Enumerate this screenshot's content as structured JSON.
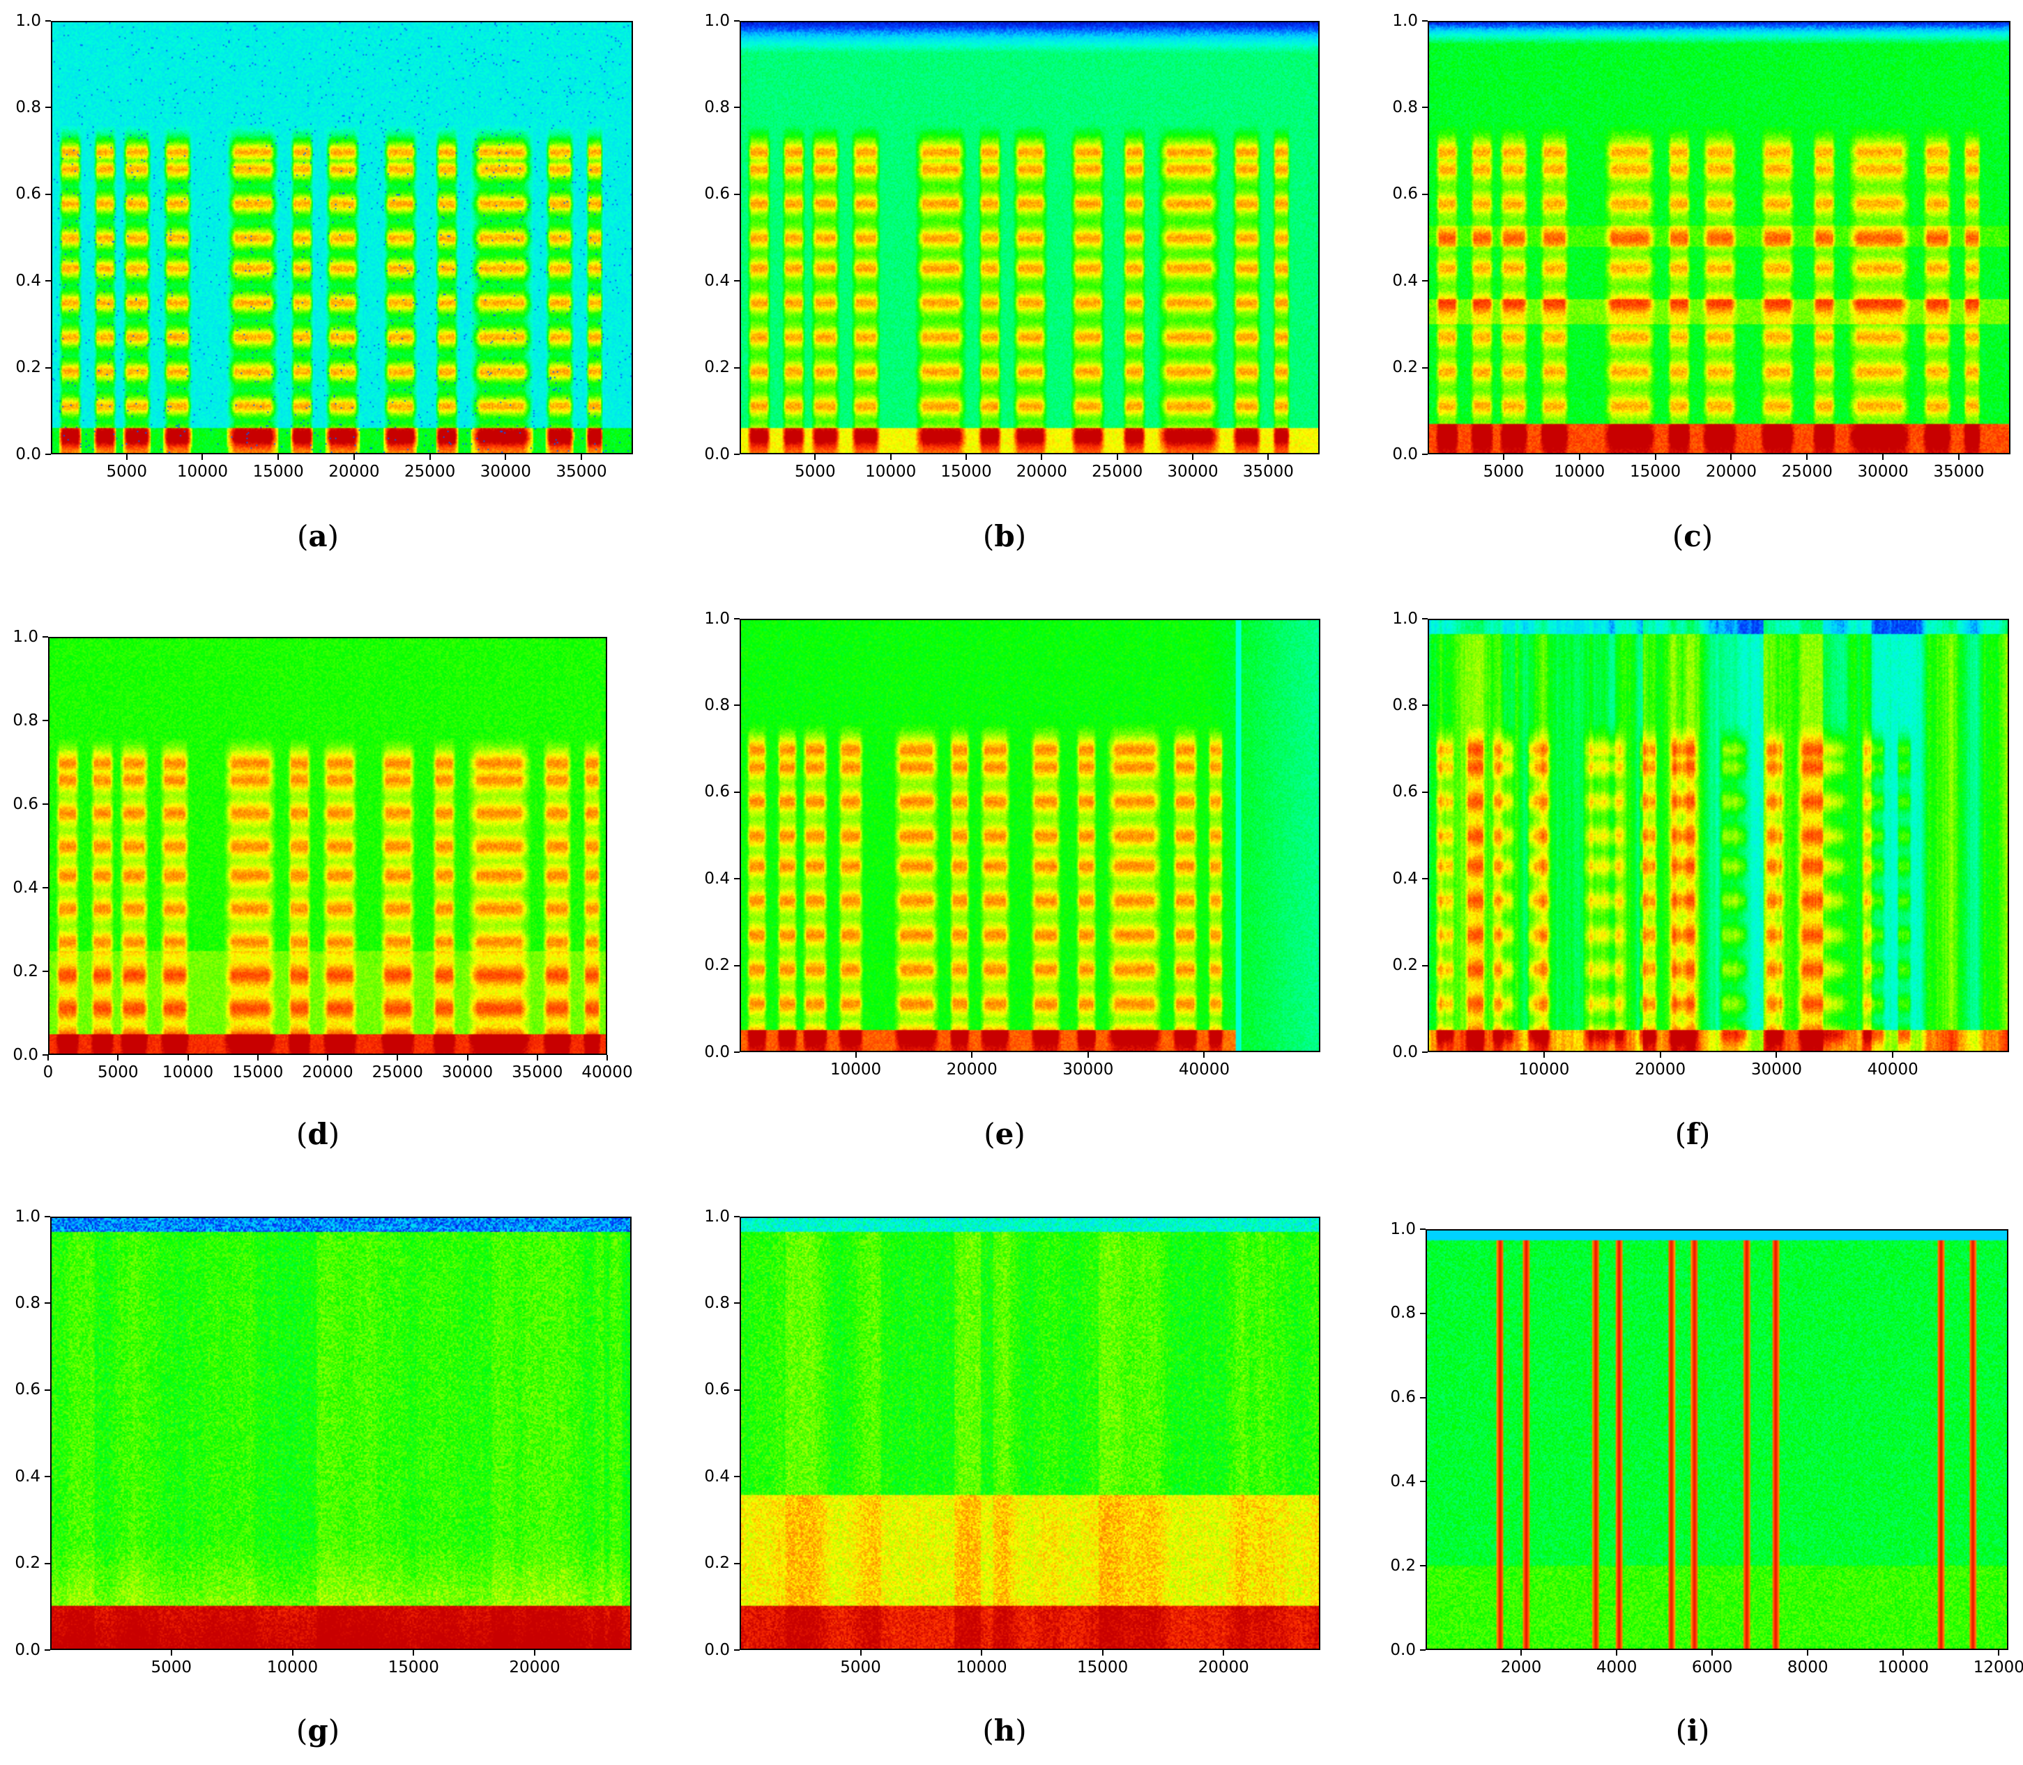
{
  "colormap": [
    "#0000b4",
    "#0040ff",
    "#00d2ff",
    "#00ffd8",
    "#00ff7a",
    "#00ff00",
    "#7eff00",
    "#ffff00",
    "#ff8c00",
    "#ff3000",
    "#c80000"
  ],
  "chart_data": [
    {
      "id": "a",
      "caption": "a",
      "type": "heatmap",
      "xlim": [
        0,
        38400
      ],
      "ylim": [
        0,
        1.0
      ],
      "xticks": [
        5000,
        10000,
        15000,
        20000,
        25000,
        30000,
        35000
      ],
      "yticks": [
        0.0,
        0.2,
        0.4,
        0.6,
        0.8,
        1.0
      ],
      "style": "speech-clean"
    },
    {
      "id": "b",
      "caption": "b",
      "type": "heatmap",
      "xlim": [
        0,
        38400
      ],
      "ylim": [
        0,
        1.0
      ],
      "xticks": [
        5000,
        10000,
        15000,
        20000,
        25000,
        30000,
        35000
      ],
      "yticks": [
        0.0,
        0.2,
        0.4,
        0.6,
        0.8,
        1.0
      ],
      "style": "speech-light-noise"
    },
    {
      "id": "c",
      "caption": "c",
      "type": "heatmap",
      "xlim": [
        0,
        38400
      ],
      "ylim": [
        0,
        1.0
      ],
      "xticks": [
        5000,
        10000,
        15000,
        20000,
        25000,
        30000,
        35000
      ],
      "yticks": [
        0.0,
        0.2,
        0.4,
        0.6,
        0.8,
        1.0
      ],
      "style": "speech-banded-noise"
    },
    {
      "id": "d",
      "caption": "d",
      "type": "heatmap",
      "xlim": [
        0,
        40000
      ],
      "ylim": [
        0,
        1.0
      ],
      "xticks": [
        0,
        5000,
        10000,
        15000,
        20000,
        25000,
        30000,
        35000,
        40000
      ],
      "yticks": [
        0.0,
        0.2,
        0.4,
        0.6,
        0.8,
        1.0
      ],
      "style": "speech-heavy-noise"
    },
    {
      "id": "e",
      "caption": "e",
      "type": "heatmap",
      "xlim": [
        0,
        50000
      ],
      "ylim": [
        0,
        1.0
      ],
      "xticks": [
        10000,
        20000,
        30000,
        40000
      ],
      "yticks": [
        0.0,
        0.2,
        0.4,
        0.6,
        0.8,
        1.0
      ],
      "style": "speech-tail-fade"
    },
    {
      "id": "f",
      "caption": "f",
      "type": "heatmap",
      "xlim": [
        0,
        50000
      ],
      "ylim": [
        0,
        1.0
      ],
      "xticks": [
        10000,
        20000,
        30000,
        40000
      ],
      "yticks": [
        0.0,
        0.2,
        0.4,
        0.6,
        0.8,
        1.0
      ],
      "style": "speech-vertical-noise"
    },
    {
      "id": "g",
      "caption": "g",
      "type": "heatmap",
      "xlim": [
        0,
        24000
      ],
      "ylim": [
        0,
        1.0
      ],
      "xticks": [
        5000,
        10000,
        15000,
        20000
      ],
      "yticks": [
        0.0,
        0.2,
        0.4,
        0.6,
        0.8,
        1.0
      ],
      "style": "broadband-noise"
    },
    {
      "id": "h",
      "caption": "h",
      "type": "heatmap",
      "xlim": [
        0,
        24000
      ],
      "ylim": [
        0,
        1.0
      ],
      "xticks": [
        5000,
        10000,
        15000,
        20000
      ],
      "yticks": [
        0.0,
        0.2,
        0.4,
        0.6,
        0.8,
        1.0
      ],
      "style": "babble-noise"
    },
    {
      "id": "i",
      "caption": "i",
      "type": "heatmap",
      "xlim": [
        0,
        12200
      ],
      "ylim": [
        0,
        1.0
      ],
      "xticks": [
        2000,
        4000,
        6000,
        8000,
        10000,
        12000
      ],
      "yticks": [
        0.0,
        0.2,
        0.4,
        0.6,
        0.8,
        1.0
      ],
      "style": "impulse-noise"
    }
  ]
}
